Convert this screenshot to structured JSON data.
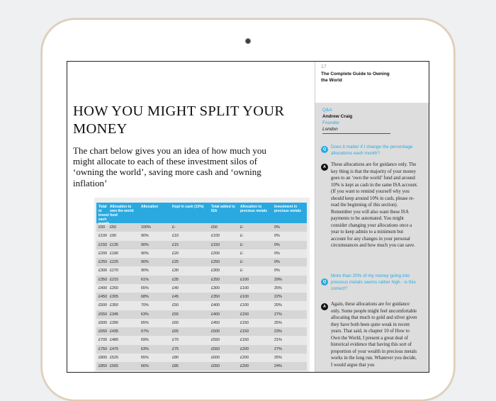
{
  "header": {
    "page_number": "17",
    "book_title": "The Complete Guide to Owning the World"
  },
  "heading": "HOW YOU MIGHT SPLIT YOUR MONEY",
  "intro": "The chart below gives you an idea of how much you might allocate to each of these investment silos of ‘owning the world’, saving more cash and ‘owning inflation’",
  "table": {
    "columns": [
      "Total to invest each month",
      "Allocation to own the world fund",
      "Allocation",
      "Kept in cash (10%)",
      "Total added to ISA",
      "Allocation to precious metals",
      "Investment in precious metals"
    ],
    "rows": [
      [
        "£50",
        "£50",
        "100%",
        "£-",
        "£50",
        "£-",
        "0%"
      ],
      [
        "£100",
        "£90",
        "90%",
        "£10",
        "£100",
        "£-",
        "0%"
      ],
      [
        "£150",
        "£135",
        "90%",
        "£15",
        "£150",
        "£-",
        "0%"
      ],
      [
        "£200",
        "£180",
        "90%",
        "£20",
        "£200",
        "£-",
        "0%"
      ],
      [
        "£250",
        "£225",
        "90%",
        "£25",
        "£250",
        "£-",
        "0%"
      ],
      [
        "£300",
        "£270",
        "90%",
        "£30",
        "£300",
        "£-",
        "0%"
      ],
      [
        "£350",
        "£215",
        "61%",
        "£35",
        "£250",
        "£100",
        "29%"
      ],
      [
        "£400",
        "£260",
        "65%",
        "£40",
        "£300",
        "£100",
        "25%"
      ],
      [
        "£450",
        "£305",
        "68%",
        "£45",
        "£350",
        "£100",
        "22%"
      ],
      [
        "£500",
        "£350",
        "70%",
        "£50",
        "£400",
        "£100",
        "20%"
      ],
      [
        "£550",
        "£345",
        "63%",
        "£55",
        "£400",
        "£150",
        "27%"
      ],
      [
        "£600",
        "£390",
        "65%",
        "£60",
        "£450",
        "£150",
        "25%"
      ],
      [
        "£650",
        "£435",
        "67%",
        "£65",
        "£500",
        "£150",
        "23%"
      ],
      [
        "£700",
        "£480",
        "69%",
        "£70",
        "£550",
        "£150",
        "21%"
      ],
      [
        "£750",
        "£475",
        "63%",
        "£75",
        "£550",
        "£200",
        "27%"
      ],
      [
        "£800",
        "£520",
        "65%",
        "£80",
        "£600",
        "£200",
        "25%"
      ],
      [
        "£850",
        "£565",
        "66%",
        "£85",
        "£650",
        "£200",
        "24%"
      ]
    ]
  },
  "sidebar": {
    "label": "Q&A",
    "name": "Andrew Craig",
    "role": "Founder",
    "location": "London",
    "q_badge": "Q",
    "a_badge": "A",
    "qa": [
      {
        "question": "Does it matter if I change the percentage allocations each month?",
        "answer": "These allocations are for guidance only. The key thing is that the majority of your money goes to an ‘own the world’ fund and around 10% is kept as cash in the same ISA account. (If you want to remind yourself why you should keep around 10% in cash, please re-read the beginning of this section). Remember you will also want these ISA payments to be automated. You might consider changing your allocations once a year to keep admin to a minimum but account for any changes in your personal circumstances and how much you can save."
      },
      {
        "question": "More than 20% of my money going into precious metals seems rather high - is this correct?",
        "answer": "Again, these allocations are for guidance only. Some people might feel uncomfortable allocating that much to gold and silver given they have both been quite weak in recent years. That said, in chapter 10 of How to Own the World, I present a great deal of historical evidence that having this sort of proportion of your wealth in precious metals works in the long run. Whatever you decide, I would argue that you"
      }
    ]
  }
}
